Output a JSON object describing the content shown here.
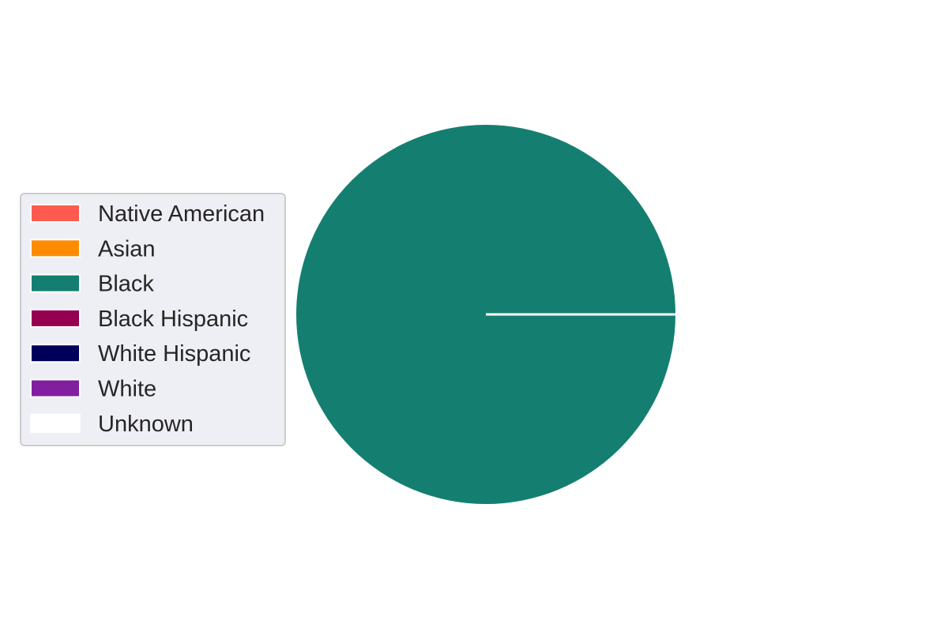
{
  "chart_data": {
    "type": "pie",
    "title": "",
    "legend": {
      "placement": "center-left",
      "entries": [
        {
          "label": "Native American",
          "color": "#ff5a50"
        },
        {
          "label": "Asian",
          "color": "#ff8c00"
        },
        {
          "label": "Black",
          "color": "#147f70"
        },
        {
          "label": "Black Hispanic",
          "color": "#960050"
        },
        {
          "label": "White Hispanic",
          "color": "#00005a"
        },
        {
          "label": "White",
          "color": "#821fa0"
        },
        {
          "label": "Unknown",
          "color": "#ffffff"
        }
      ]
    },
    "slices": [
      {
        "label": "Native American",
        "value": 0
      },
      {
        "label": "Asian",
        "value": 0
      },
      {
        "label": "Black",
        "value": 1
      },
      {
        "label": "Black Hispanic",
        "value": 0
      },
      {
        "label": "White Hispanic",
        "value": 0
      },
      {
        "label": "White",
        "value": 0
      },
      {
        "label": "Unknown",
        "value": 0
      }
    ],
    "edge_color": "#ffffff"
  }
}
